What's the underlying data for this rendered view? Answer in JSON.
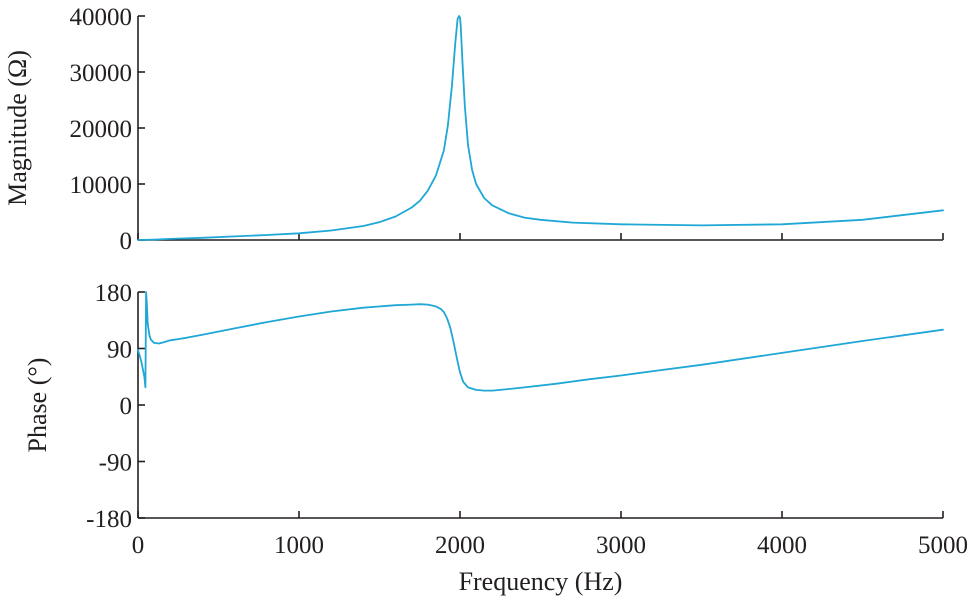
{
  "chart_data": [
    {
      "type": "line",
      "panel": "top",
      "ylabel": "Magnitude (Ω)",
      "xlabel": "",
      "xlim": [
        0,
        5000
      ],
      "ylim": [
        0,
        40000
      ],
      "x_ticks": [
        0,
        1000,
        2000,
        3000,
        4000,
        5000
      ],
      "x_tick_labels_shown": false,
      "y_ticks": [
        0,
        10000,
        20000,
        30000,
        40000
      ],
      "y_tick_labels": [
        "0",
        "10000",
        "20000",
        "30000",
        "40000"
      ],
      "grid": false,
      "color": "#1fa7d6",
      "series": [
        {
          "x": [
            0,
            100,
            200,
            400,
            600,
            800,
            1000,
            1200,
            1400,
            1500,
            1600,
            1700,
            1750,
            1800,
            1850,
            1900,
            1925,
            1950,
            1970,
            1985,
            1995,
            2000,
            2005,
            2015,
            2030,
            2050,
            2075,
            2100,
            2150,
            2200,
            2300,
            2400,
            2500,
            2700,
            3000,
            3500,
            4000,
            4500,
            5000
          ],
          "values": [
            0,
            80,
            200,
            400,
            650,
            900,
            1200,
            1700,
            2500,
            3200,
            4200,
            5800,
            7000,
            8800,
            11500,
            16000,
            20500,
            27500,
            35000,
            39500,
            40000,
            39700,
            38000,
            32000,
            24000,
            17000,
            12500,
            10000,
            7500,
            6200,
            4800,
            4000,
            3600,
            3100,
            2800,
            2600,
            2800,
            3600,
            5300
          ]
        }
      ]
    },
    {
      "type": "line",
      "panel": "bottom",
      "ylabel": "Phase (°)",
      "xlabel": "Frequency (Hz)",
      "xlim": [
        0,
        5000
      ],
      "ylim": [
        -180,
        180
      ],
      "x_ticks": [
        0,
        1000,
        2000,
        3000,
        4000,
        5000
      ],
      "x_tick_labels": [
        "0",
        "1000",
        "2000",
        "3000",
        "4000",
        "5000"
      ],
      "y_ticks": [
        -180,
        -90,
        0,
        90,
        180
      ],
      "y_tick_labels": [
        "-180",
        "-90",
        "0",
        "90",
        "180"
      ],
      "grid": false,
      "color": "#1fa7d6",
      "series": [
        {
          "x": [
            0,
            20,
            40,
            46,
            50,
            55,
            60,
            70,
            80,
            100,
            130,
            160,
            200,
            250,
            300,
            400,
            600,
            800,
            1000,
            1200,
            1400,
            1600,
            1700,
            1750,
            1800,
            1850,
            1880,
            1900,
            1920,
            1940,
            1960,
            1980,
            2000,
            2020,
            2050,
            2100,
            2150,
            2200,
            2250,
            2400,
            2600,
            2800,
            3000,
            3200,
            3500,
            4000,
            4500,
            5000
          ],
          "values": [
            88,
            70,
            45,
            28,
            180,
            160,
            130,
            112,
            104,
            99,
            98,
            100,
            103,
            105,
            107,
            112,
            122,
            132,
            141,
            149,
            155,
            159,
            160,
            160.5,
            160,
            157,
            153,
            148,
            138,
            123,
            100,
            75,
            52,
            37,
            28,
            24,
            23,
            23,
            24,
            28,
            34,
            41,
            47,
            54,
            64,
            83,
            102,
            120
          ]
        }
      ]
    }
  ]
}
